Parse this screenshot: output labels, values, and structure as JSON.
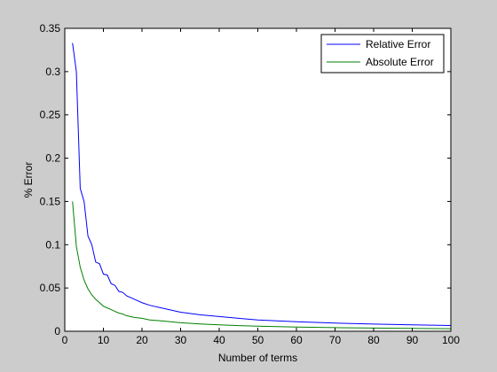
{
  "chart_data": {
    "type": "line",
    "xlabel": "Number of terms",
    "ylabel": "% Error",
    "xlim": [
      0,
      100
    ],
    "ylim": [
      0,
      0.35
    ],
    "xticks": [
      0,
      10,
      20,
      30,
      40,
      50,
      60,
      70,
      80,
      90,
      100
    ],
    "yticks": [
      0,
      0.05,
      0.1,
      0.15,
      0.2,
      0.25,
      0.3,
      0.35
    ],
    "xtick_labels": [
      "0",
      "10",
      "20",
      "30",
      "40",
      "50",
      "60",
      "70",
      "80",
      "90",
      "100"
    ],
    "ytick_labels": [
      "0",
      "0.05",
      "0.1",
      "0.15",
      "0.2",
      "0.25",
      "0.3",
      "0.35"
    ],
    "grid": false,
    "legend": "top-right",
    "series": [
      {
        "name": "Relative Error",
        "color": "#0000ff",
        "x": [
          2,
          3,
          4,
          5,
          6,
          7,
          8,
          9,
          10,
          11,
          12,
          13,
          14,
          15,
          16,
          18,
          20,
          22,
          25,
          30,
          35,
          40,
          45,
          50,
          60,
          70,
          80,
          90,
          100
        ],
        "y": [
          0.333,
          0.3,
          0.165,
          0.15,
          0.11,
          0.1,
          0.08,
          0.078,
          0.066,
          0.065,
          0.055,
          0.053,
          0.046,
          0.045,
          0.041,
          0.037,
          0.033,
          0.03,
          0.027,
          0.022,
          0.019,
          0.017,
          0.015,
          0.013,
          0.011,
          0.0095,
          0.0083,
          0.0074,
          0.0067
        ]
      },
      {
        "name": "Absolute Error",
        "color": "#008000",
        "x": [
          2,
          3,
          4,
          5,
          6,
          7,
          8,
          9,
          10,
          11,
          12,
          13,
          14,
          15,
          16,
          18,
          20,
          22,
          25,
          30,
          35,
          40,
          45,
          50,
          60,
          70,
          80,
          90,
          100
        ],
        "y": [
          0.15,
          0.098,
          0.074,
          0.059,
          0.049,
          0.042,
          0.037,
          0.033,
          0.029,
          0.027,
          0.025,
          0.023,
          0.021,
          0.02,
          0.018,
          0.016,
          0.015,
          0.013,
          0.012,
          0.0098,
          0.0084,
          0.0074,
          0.0065,
          0.0059,
          0.0049,
          0.0042,
          0.0037,
          0.0033,
          0.0029
        ]
      }
    ]
  }
}
